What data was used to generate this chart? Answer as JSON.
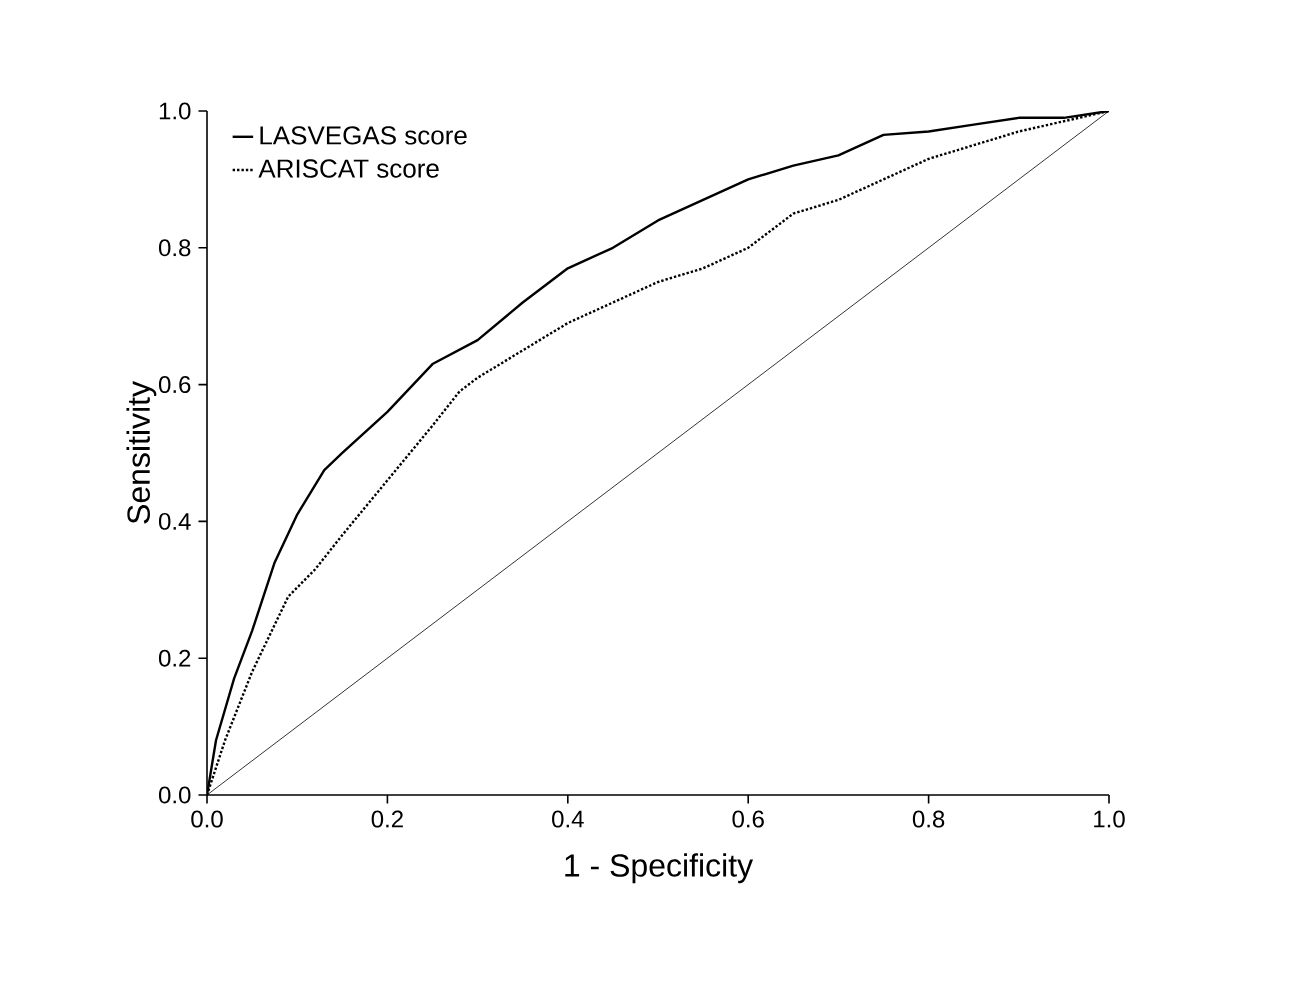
{
  "chart_data": {
    "type": "line",
    "xlabel": "1 - Specificity",
    "ylabel": "Sensitivity",
    "xlim": [
      0,
      1
    ],
    "ylim": [
      0,
      1
    ],
    "xticks": [
      {
        "value": 0,
        "label": "0.0"
      },
      0.2,
      0.4,
      0.6,
      0.8,
      {
        "value": 1,
        "label": "1.0"
      }
    ],
    "yticks": [
      {
        "value": 0,
        "label": "0.0"
      },
      0.2,
      0.4,
      0.6,
      0.8,
      {
        "value": 1,
        "label": "1.0"
      }
    ],
    "grid": false,
    "legend": "top left",
    "marker": "none",
    "series": [
      {
        "name": "LASVEGAS score",
        "color": "#000000",
        "line_style": "solid",
        "x": [
          0,
          0.01,
          0.03,
          0.05,
          0.075,
          0.1,
          0.13,
          0.15,
          0.2,
          0.25,
          0.3,
          0.35,
          0.4,
          0.45,
          0.5,
          0.55,
          0.6,
          0.65,
          0.7,
          0.75,
          0.8,
          0.85,
          0.9,
          0.95,
          1.0
        ],
        "values": [
          0,
          0.08,
          0.17,
          0.24,
          0.34,
          0.41,
          0.475,
          0.5,
          0.56,
          0.63,
          0.665,
          0.72,
          0.77,
          0.8,
          0.84,
          0.87,
          0.9,
          0.92,
          0.935,
          0.965,
          0.97,
          0.98,
          0.99,
          0.99,
          1.0
        ]
      },
      {
        "name": "ARISCAT score",
        "color": "#000000",
        "line_style": "dotted",
        "x": [
          0,
          0.02,
          0.05,
          0.09,
          0.12,
          0.15,
          0.2,
          0.25,
          0.28,
          0.3,
          0.35,
          0.4,
          0.45,
          0.5,
          0.55,
          0.6,
          0.65,
          0.7,
          0.75,
          0.8,
          0.85,
          0.9,
          0.95,
          1.0
        ],
        "values": [
          0,
          0.08,
          0.18,
          0.29,
          0.33,
          0.38,
          0.46,
          0.54,
          0.59,
          0.61,
          0.65,
          0.69,
          0.72,
          0.75,
          0.77,
          0.8,
          0.85,
          0.87,
          0.9,
          0.93,
          0.95,
          0.97,
          0.985,
          1.0
        ]
      },
      {
        "color": "#000000",
        "line_style": "solid",
        "x": [
          0,
          1
        ],
        "values": [
          0,
          1
        ]
      }
    ]
  }
}
